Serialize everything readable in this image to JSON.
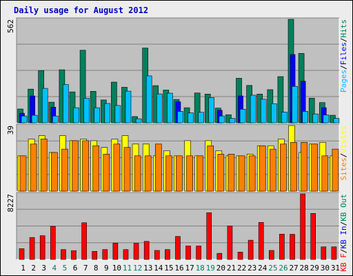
{
  "title": "Daily usage for August 2012",
  "colors": {
    "background": "#ececec",
    "plot_bg": "#c0c0c0",
    "title": "#0000c0",
    "hits": "#00805c",
    "files": "#0000ff",
    "pages": "#00c0ff",
    "visits": "#ffff00",
    "sites": "#ff8000",
    "kbin": "#0000ff",
    "kbout": "#00805c",
    "kbf": "#ff0000",
    "weekend_day": "#00805c",
    "weekday_day": "#000000"
  },
  "chart_data": [
    {
      "type": "bar",
      "name": "hits-files-pages",
      "ymax_label": "562",
      "ylim": [
        0,
        562
      ],
      "legend": [
        {
          "text": "Pages",
          "color_key": "pages"
        },
        {
          "text": "/",
          "color_key": "sep"
        },
        {
          "text": "Files",
          "color_key": "files"
        },
        {
          "text": "/",
          "color_key": "sep"
        },
        {
          "text": "Hits",
          "color_key": "hits"
        }
      ],
      "categories": [
        "1",
        "2",
        "3",
        "4",
        "5",
        "6",
        "7",
        "8",
        "9",
        "10",
        "11",
        "12",
        "13",
        "14",
        "15",
        "16",
        "17",
        "18",
        "19",
        "20",
        "21",
        "22",
        "23",
        "24",
        "25",
        "26",
        "27",
        "28",
        "29",
        "30",
        "31"
      ],
      "series": [
        {
          "name": "Hits",
          "color_key": "hits",
          "values": [
            75,
            183,
            284,
            112,
            288,
            168,
            394,
            171,
            124,
            221,
            193,
            34,
            406,
            202,
            178,
            127,
            82,
            162,
            156,
            80,
            44,
            242,
            203,
            156,
            180,
            251,
            562,
            377,
            134,
            110,
            41
          ]
        },
        {
          "name": "Files",
          "color_key": "files",
          "values": [
            52,
            146,
            0,
            85,
            0,
            0,
            0,
            0,
            0,
            0,
            0,
            0,
            0,
            0,
            0,
            114,
            0,
            0,
            0,
            68,
            0,
            146,
            0,
            0,
            0,
            0,
            371,
            226,
            0,
            82,
            0
          ]
        },
        {
          "name": "Pages",
          "color_key": "pages",
          "values": [
            37,
            41,
            187,
            37,
            208,
            82,
            133,
            82,
            105,
            94,
            172,
            22,
            255,
            157,
            161,
            62,
            54,
            57,
            137,
            37,
            24,
            74,
            150,
            128,
            104,
            58,
            198,
            62,
            48,
            43,
            24
          ]
        }
      ]
    },
    {
      "type": "bar",
      "name": "visits-sites",
      "ymax_label": "39",
      "ylim": [
        0,
        39
      ],
      "legend": [
        {
          "text": "Sites",
          "color_key": "sites"
        },
        {
          "text": "/",
          "color_key": "sep"
        },
        {
          "text": "Visits",
          "color_key": "visits"
        }
      ],
      "categories": [
        "1",
        "2",
        "3",
        "4",
        "5",
        "6",
        "7",
        "8",
        "9",
        "10",
        "11",
        "12",
        "13",
        "14",
        "15",
        "16",
        "17",
        "18",
        "19",
        "20",
        "21",
        "22",
        "23",
        "24",
        "25",
        "26",
        "27",
        "28",
        "29",
        "30",
        "31"
      ],
      "series": [
        {
          "name": "Visits",
          "color_key": "visits",
          "values": [
            21,
            31,
            33,
            23,
            33,
            30,
            31,
            30,
            26,
            31,
            33,
            28,
            28,
            21,
            24,
            21,
            30,
            21,
            30,
            24,
            21,
            21,
            22,
            27,
            27,
            31,
            39,
            23,
            28,
            29,
            21
          ]
        },
        {
          "name": "Sites",
          "color_key": "sites",
          "values": [
            21,
            28,
            31,
            23,
            25,
            30,
            30,
            27,
            22,
            28,
            26,
            21,
            21,
            28,
            21,
            21,
            21,
            21,
            27,
            22,
            22,
            21,
            21,
            27,
            25,
            28,
            29,
            29,
            28,
            21,
            25
          ]
        }
      ]
    },
    {
      "type": "bar",
      "name": "kbytes",
      "ymax_label": "8227",
      "ylim": [
        0,
        8227
      ],
      "legend": [
        {
          "text": "KB F",
          "color_key": "kbf"
        },
        {
          "text": "/",
          "color_key": "sep"
        },
        {
          "text": "KB In",
          "color_key": "kbin"
        },
        {
          "text": "/",
          "color_key": "sep"
        },
        {
          "text": "KB Out",
          "color_key": "kbout"
        }
      ],
      "categories": [
        "1",
        "2",
        "3",
        "4",
        "5",
        "6",
        "7",
        "8",
        "9",
        "10",
        "11",
        "12",
        "13",
        "14",
        "15",
        "16",
        "17",
        "18",
        "19",
        "20",
        "21",
        "22",
        "23",
        "24",
        "25",
        "26",
        "27",
        "28",
        "29",
        "30",
        "31"
      ],
      "series": [
        {
          "name": "KB F",
          "color_key": "kbf",
          "values": [
            1353,
            2758,
            2985,
            4155,
            1240,
            1105,
            4605,
            1015,
            1240,
            2053,
            1240,
            2030,
            2266,
            1128,
            1240,
            2888,
            1691,
            1691,
            5865,
            767,
            4200,
            924,
            2414,
            4650,
            1128,
            3180,
            3157,
            8227,
            5775,
            1579,
            1579
          ]
        }
      ]
    }
  ],
  "x_labels": [
    {
      "d": "1",
      "weekend": false
    },
    {
      "d": "2",
      "weekend": false
    },
    {
      "d": "3",
      "weekend": false
    },
    {
      "d": "4",
      "weekend": true
    },
    {
      "d": "5",
      "weekend": true
    },
    {
      "d": "6",
      "weekend": false
    },
    {
      "d": "7",
      "weekend": false
    },
    {
      "d": "8",
      "weekend": false
    },
    {
      "d": "9",
      "weekend": false
    },
    {
      "d": "10",
      "weekend": false
    },
    {
      "d": "11",
      "weekend": true
    },
    {
      "d": "12",
      "weekend": true
    },
    {
      "d": "13",
      "weekend": false
    },
    {
      "d": "14",
      "weekend": false
    },
    {
      "d": "15",
      "weekend": false
    },
    {
      "d": "16",
      "weekend": false
    },
    {
      "d": "17",
      "weekend": false
    },
    {
      "d": "18",
      "weekend": true
    },
    {
      "d": "19",
      "weekend": true
    },
    {
      "d": "20",
      "weekend": false
    },
    {
      "d": "21",
      "weekend": false
    },
    {
      "d": "22",
      "weekend": false
    },
    {
      "d": "23",
      "weekend": false
    },
    {
      "d": "24",
      "weekend": false
    },
    {
      "d": "25",
      "weekend": true
    },
    {
      "d": "26",
      "weekend": true
    },
    {
      "d": "27",
      "weekend": false
    },
    {
      "d": "28",
      "weekend": false
    },
    {
      "d": "29",
      "weekend": false
    },
    {
      "d": "30",
      "weekend": false
    },
    {
      "d": "31",
      "weekend": false
    }
  ]
}
